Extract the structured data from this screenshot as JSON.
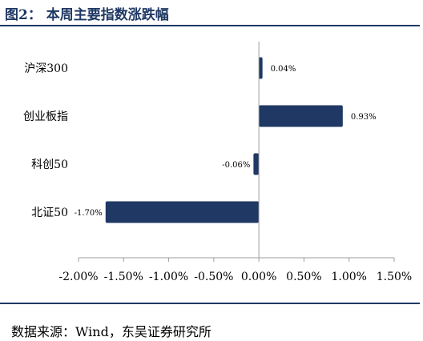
{
  "figure": {
    "title": "图2：  本周主要指数涨跌幅",
    "source": "数据来源：Wind，东吴证券研究所"
  },
  "colors": {
    "bar": "#1f3864",
    "rule": "#1f3864",
    "axis": "#9e9e9e",
    "text": "#000000"
  },
  "chart_data": {
    "type": "bar",
    "orientation": "horizontal",
    "categories": [
      "沪深300",
      "创业板指",
      "科创50",
      "北证50"
    ],
    "values": [
      0.04,
      0.93,
      -0.06,
      -1.7
    ],
    "value_labels": [
      "0.04%",
      "0.93%",
      "-0.06%",
      "-1.70%"
    ],
    "xlim": [
      -2.0,
      1.5
    ],
    "xticks": [
      -2.0,
      -1.5,
      -1.0,
      -0.5,
      0.0,
      0.5,
      1.0,
      1.5
    ],
    "xtick_labels": [
      "-2.00%",
      "-1.50%",
      "-1.00%",
      "-0.50%",
      "0.00%",
      "0.50%",
      "1.00%",
      "1.50%"
    ],
    "grid": false,
    "legend": "none"
  }
}
